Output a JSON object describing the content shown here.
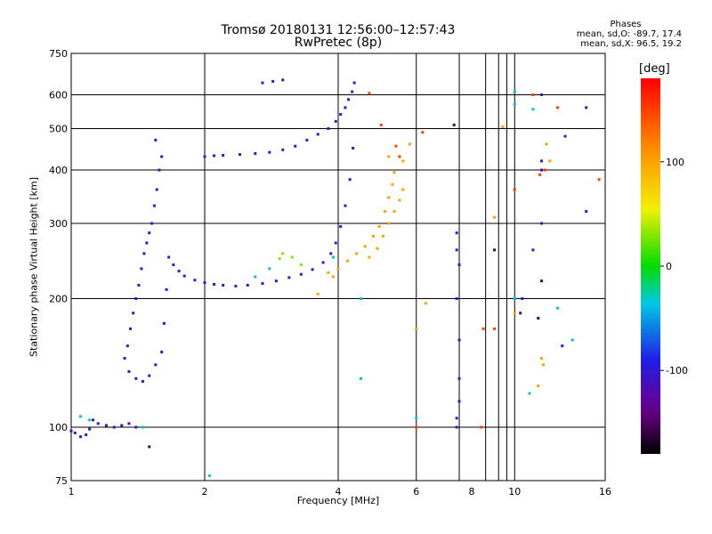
{
  "header": {
    "title_line1": "Tromsø 20180131 12:56:00–12:57:43",
    "title_line2": "RwPretec (8p)"
  },
  "phase_info": {
    "heading": "Phases",
    "line_o": "mean, sd,O: -89.7, 17.4",
    "line_x": "mean, sd,X:  96.5, 19.2"
  },
  "chart_data": {
    "type": "scatter",
    "title": "Tromsø 20180131 12:56:00–12:57:43",
    "subtitle": "RwPretec (8p)",
    "xlabel": "Frequency [MHz]",
    "ylabel": "Stationary phase Virtual Height [km]",
    "x_scale": "log2",
    "y_scale": "log",
    "xlim": [
      1,
      16
    ],
    "ylim": [
      75,
      750
    ],
    "x_major_ticks": [
      1,
      2,
      4,
      16
    ],
    "x_major_tick_labels": [
      "1",
      "2",
      "4",
      "16"
    ],
    "x_minor_ticks": [
      6,
      8,
      10
    ],
    "x_minor_tick_labels": [
      "6",
      "8",
      "10"
    ],
    "x_extra_gridlines": [
      6,
      7.5,
      8.6,
      9.2,
      9.6,
      10
    ],
    "y_ticks": [
      75,
      100,
      200,
      300,
      400,
      500,
      600,
      750
    ],
    "y_tick_labels": [
      "75",
      "100",
      "200",
      "300",
      "400",
      "500",
      "600",
      "750"
    ],
    "grid": true,
    "colorbar": {
      "label": "[deg]",
      "range": [
        -180,
        180
      ],
      "ticks": [
        -100,
        0,
        100
      ],
      "tick_labels": [
        "-100",
        "0",
        "100"
      ],
      "colormap": "rainbow"
    },
    "series": [
      {
        "phase": -100,
        "points": [
          [
            1.0,
            98
          ],
          [
            1.02,
            97
          ],
          [
            1.05,
            95
          ],
          [
            1.08,
            96
          ],
          [
            1.1,
            99
          ],
          [
            1.12,
            104
          ],
          [
            1.15,
            102
          ],
          [
            1.2,
            101
          ],
          [
            1.25,
            100
          ],
          [
            1.3,
            101
          ],
          [
            1.35,
            102
          ],
          [
            1.4,
            100
          ],
          [
            1.32,
            145
          ],
          [
            1.34,
            155
          ],
          [
            1.36,
            170
          ],
          [
            1.38,
            185
          ],
          [
            1.4,
            200
          ],
          [
            1.42,
            215
          ],
          [
            1.44,
            235
          ],
          [
            1.46,
            255
          ],
          [
            1.48,
            270
          ],
          [
            1.5,
            285
          ],
          [
            1.52,
            300
          ],
          [
            1.54,
            330
          ],
          [
            1.56,
            360
          ],
          [
            1.58,
            400
          ],
          [
            1.6,
            430
          ],
          [
            1.55,
            470
          ],
          [
            1.35,
            135
          ],
          [
            1.4,
            130
          ],
          [
            1.45,
            128
          ],
          [
            1.5,
            132
          ],
          [
            1.55,
            140
          ],
          [
            1.6,
            150
          ],
          [
            1.62,
            175
          ],
          [
            1.64,
            210
          ],
          [
            1.66,
            250
          ],
          [
            1.7,
            240
          ],
          [
            1.75,
            232
          ],
          [
            1.8,
            226
          ],
          [
            1.9,
            221
          ],
          [
            2.0,
            218
          ],
          [
            2.1,
            216
          ],
          [
            2.2,
            215
          ],
          [
            2.35,
            214
          ],
          [
            2.5,
            215
          ],
          [
            2.7,
            217
          ],
          [
            2.9,
            220
          ],
          [
            3.1,
            224
          ],
          [
            3.3,
            228
          ],
          [
            3.5,
            234
          ],
          [
            3.7,
            243
          ],
          [
            3.85,
            255
          ],
          [
            3.95,
            270
          ],
          [
            4.05,
            295
          ],
          [
            4.15,
            330
          ],
          [
            4.25,
            380
          ],
          [
            4.32,
            450
          ],
          [
            2.0,
            430
          ],
          [
            2.1,
            432
          ],
          [
            2.2,
            433
          ],
          [
            2.4,
            435
          ],
          [
            2.6,
            437
          ],
          [
            2.8,
            440
          ],
          [
            3.0,
            446
          ],
          [
            3.2,
            455
          ],
          [
            3.4,
            470
          ],
          [
            3.6,
            485
          ],
          [
            3.8,
            500
          ],
          [
            3.95,
            520
          ],
          [
            4.05,
            540
          ],
          [
            4.15,
            560
          ],
          [
            4.22,
            585
          ],
          [
            4.3,
            610
          ],
          [
            4.35,
            640
          ],
          [
            2.7,
            640
          ],
          [
            2.85,
            645
          ],
          [
            3.0,
            650
          ],
          [
            7.4,
            285
          ],
          [
            7.4,
            260
          ],
          [
            7.5,
            240
          ],
          [
            7.4,
            200
          ],
          [
            7.5,
            160
          ],
          [
            7.5,
            130
          ],
          [
            7.5,
            115
          ],
          [
            7.4,
            105
          ],
          [
            7.4,
            100
          ],
          [
            11.5,
            600
          ],
          [
            11.5,
            420
          ],
          [
            11.5,
            400
          ],
          [
            11.5,
            300
          ],
          [
            11.0,
            260
          ],
          [
            10.4,
            200
          ],
          [
            14.5,
            560
          ],
          [
            14.5,
            320
          ],
          [
            13.0,
            480
          ],
          [
            12.8,
            155
          ]
        ]
      },
      {
        "phase": -30,
        "points": [
          [
            1.05,
            106
          ],
          [
            1.1,
            104
          ],
          [
            1.45,
            100
          ],
          [
            2.05,
            77
          ],
          [
            2.6,
            225
          ],
          [
            2.8,
            235
          ],
          [
            3.9,
            250
          ],
          [
            4.5,
            200
          ],
          [
            4.5,
            130
          ],
          [
            6.0,
            105
          ],
          [
            10.0,
            610
          ],
          [
            10.0,
            570
          ],
          [
            11.0,
            555
          ],
          [
            10.8,
            120
          ],
          [
            13.5,
            160
          ],
          [
            12.5,
            190
          ],
          [
            10.0,
            200
          ]
        ]
      },
      {
        "phase": 30,
        "points": [
          [
            3.0,
            255
          ],
          [
            3.15,
            250
          ],
          [
            3.3,
            240
          ],
          [
            2.95,
            248
          ]
        ]
      },
      {
        "phase": 100,
        "points": [
          [
            3.8,
            230
          ],
          [
            4.0,
            235
          ],
          [
            4.2,
            245
          ],
          [
            4.4,
            255
          ],
          [
            4.6,
            265
          ],
          [
            4.8,
            280
          ],
          [
            4.95,
            295
          ],
          [
            5.1,
            320
          ],
          [
            5.2,
            345
          ],
          [
            5.3,
            370
          ],
          [
            5.35,
            395
          ],
          [
            4.7,
            250
          ],
          [
            4.9,
            262
          ],
          [
            5.05,
            280
          ],
          [
            5.2,
            300
          ],
          [
            5.35,
            320
          ],
          [
            5.5,
            340
          ],
          [
            5.6,
            360
          ],
          [
            3.6,
            205
          ],
          [
            3.9,
            225
          ],
          [
            5.2,
            430
          ],
          [
            5.6,
            420
          ],
          [
            9.4,
            505
          ],
          [
            9.0,
            310
          ],
          [
            6.3,
            195
          ],
          [
            6.0,
            170
          ],
          [
            5.8,
            460
          ],
          [
            10.0,
            185
          ],
          [
            11.5,
            145
          ],
          [
            11.6,
            140
          ],
          [
            11.3,
            125
          ],
          [
            11.8,
            460
          ],
          [
            12.0,
            420
          ]
        ]
      },
      {
        "phase": 150,
        "points": [
          [
            4.7,
            605
          ],
          [
            5.0,
            510
          ],
          [
            5.4,
            455
          ],
          [
            5.5,
            430
          ],
          [
            12.5,
            560
          ],
          [
            6.0,
            100
          ],
          [
            6.2,
            490
          ],
          [
            8.4,
            100
          ],
          [
            8.5,
            170
          ],
          [
            9.0,
            170
          ],
          [
            10.0,
            360
          ],
          [
            11.0,
            600
          ],
          [
            11.4,
            390
          ],
          [
            11.7,
            400
          ],
          [
            15.5,
            380
          ]
        ]
      },
      {
        "phase": -150,
        "points": [
          [
            1.5,
            90
          ],
          [
            7.3,
            510
          ],
          [
            10.3,
            185
          ],
          [
            11.3,
            180
          ],
          [
            11.5,
            220
          ],
          [
            9.0,
            260
          ]
        ]
      }
    ]
  }
}
